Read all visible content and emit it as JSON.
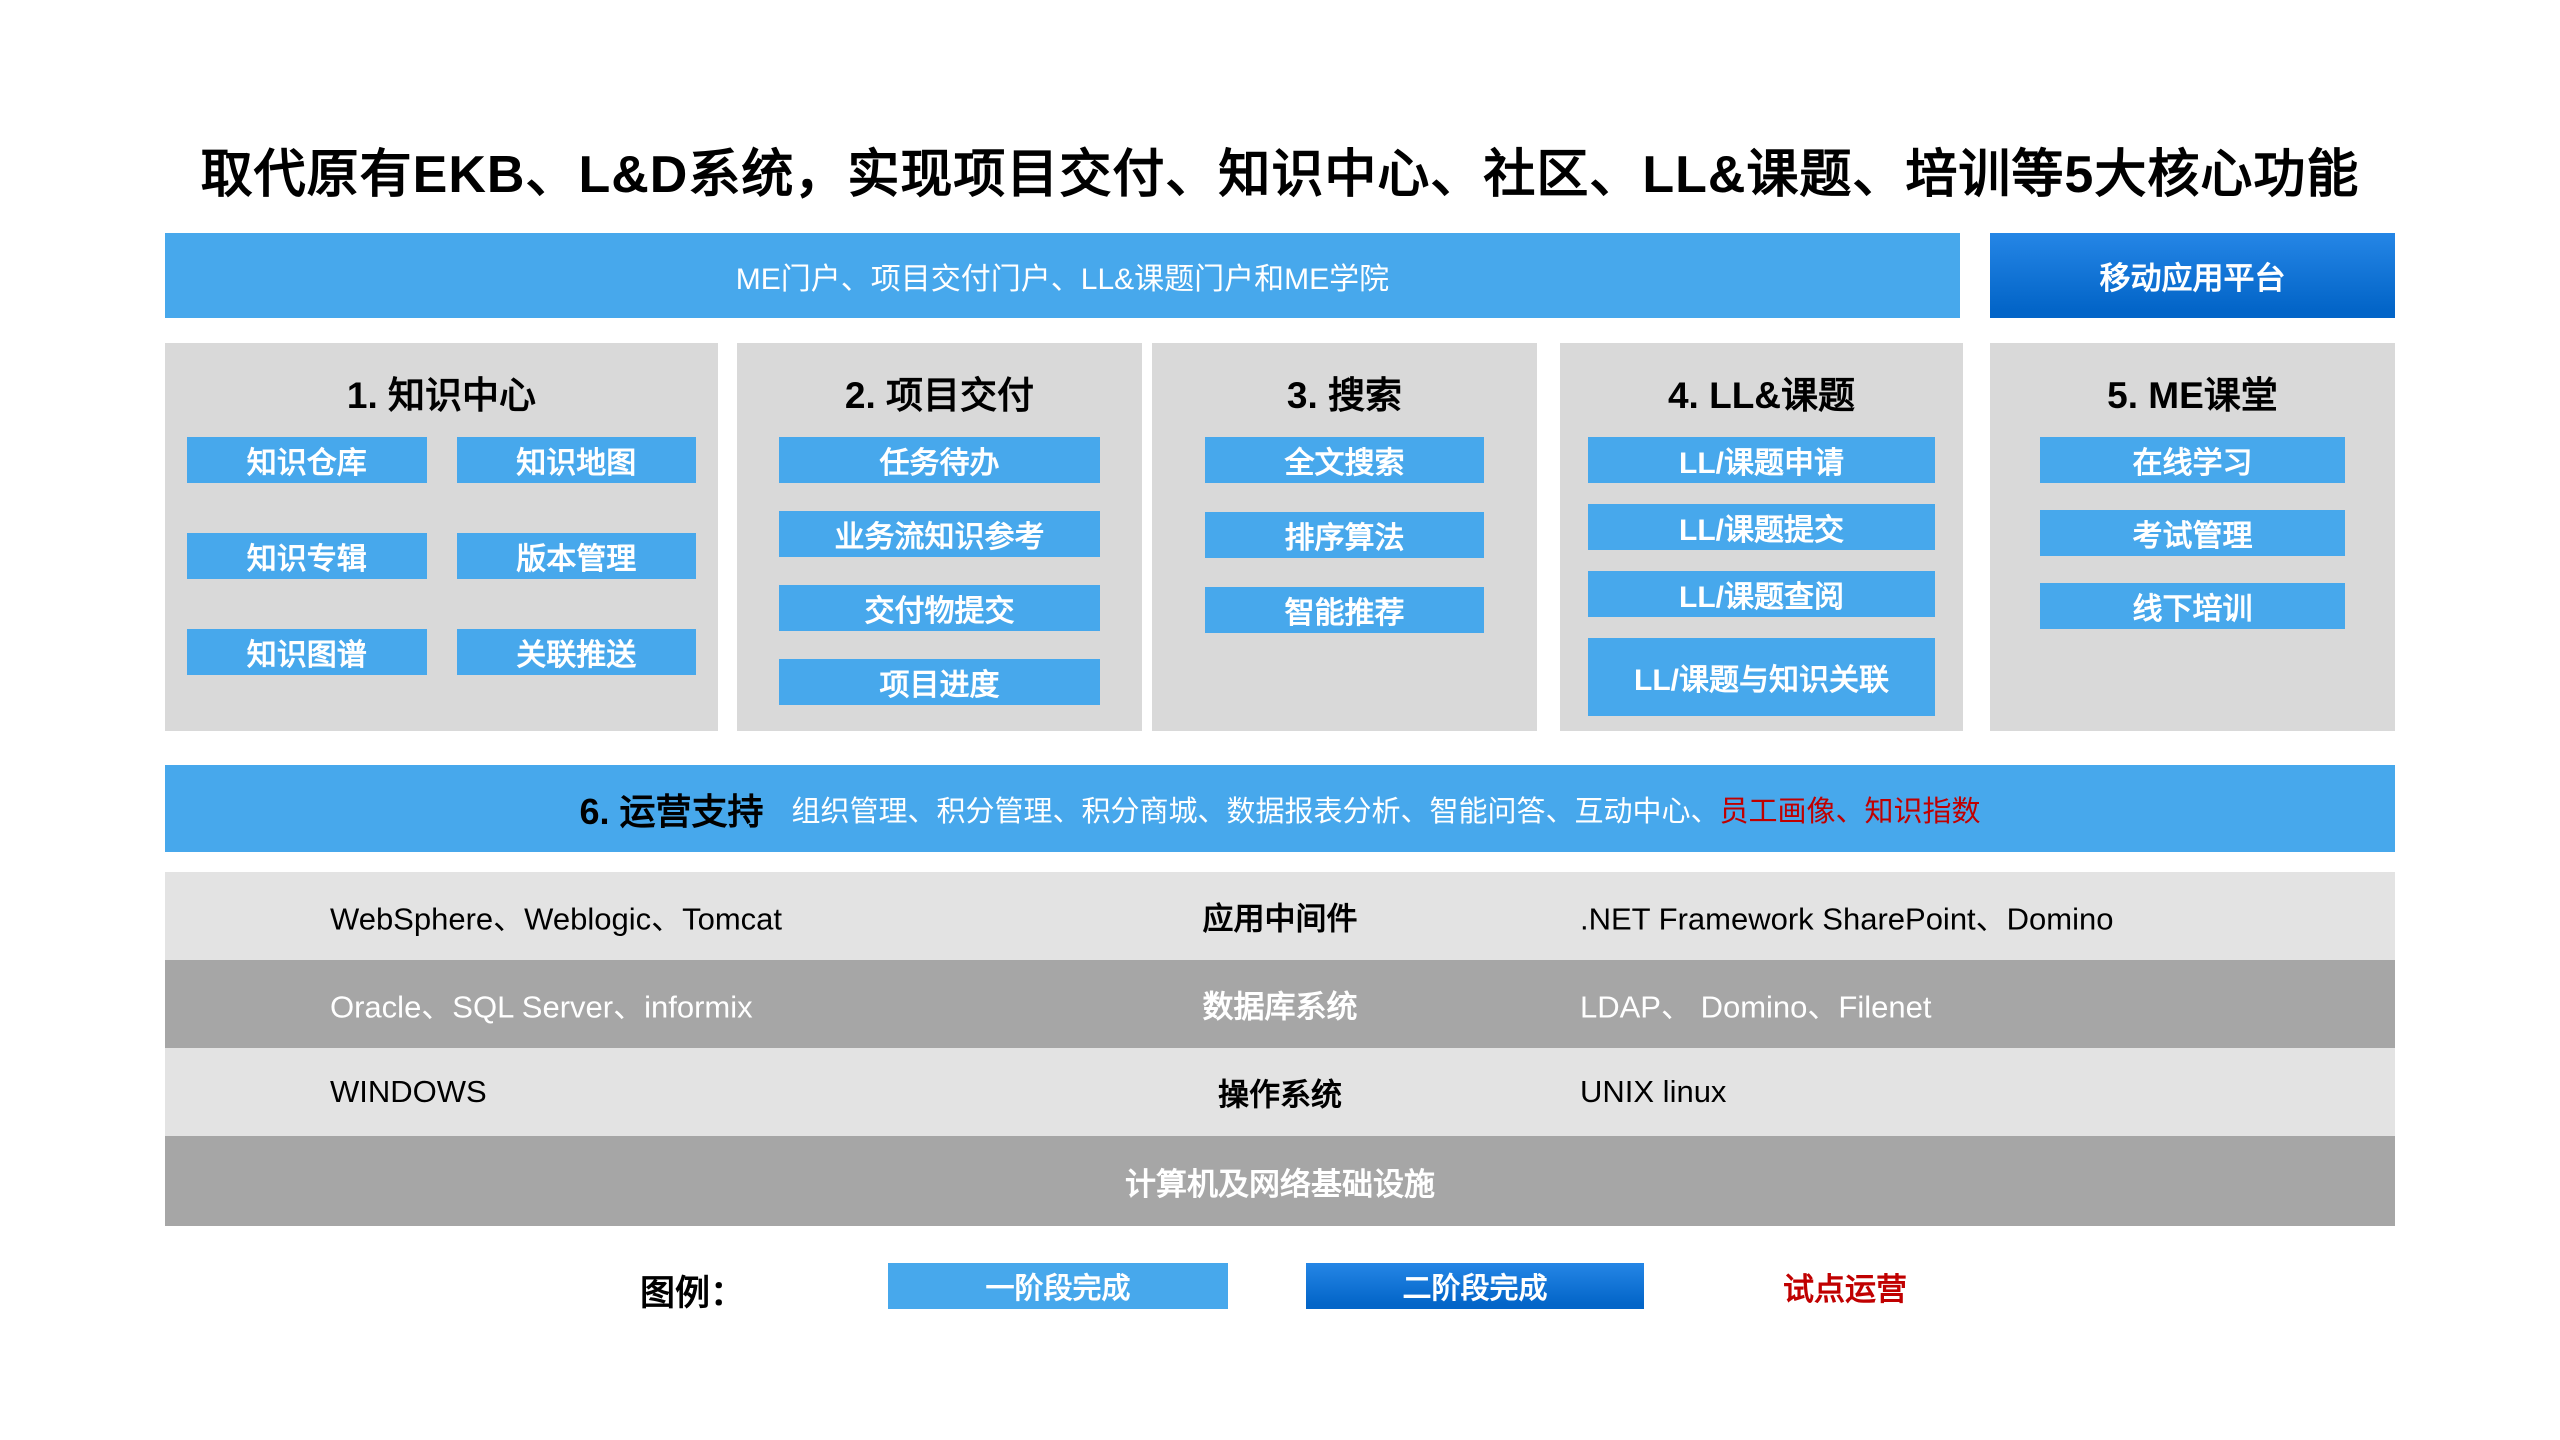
{
  "page": {
    "title": "取代原有EKB、L&D系统，实现项目交付、知识中心、社区、LL&课题、培训等5大核心功能"
  },
  "top": {
    "portal_banner": "ME门户、项目交付门户、LL&课题门户和ME学院",
    "mobile_platform": "移动应用平台"
  },
  "columns": [
    {
      "title": "1. 知识中心",
      "items": [
        "知识仓库",
        "知识地图",
        "知识专辑",
        "版本管理",
        "知识图谱",
        "关联推送"
      ]
    },
    {
      "title": "2. 项目交付",
      "items": [
        "任务待办",
        "业务流知识参考",
        "交付物提交",
        "项目进度"
      ]
    },
    {
      "title": "3. 搜索",
      "items": [
        "全文搜索",
        "排序算法",
        "智能推荐"
      ]
    },
    {
      "title": "4. LL&课题",
      "items": [
        "LL/课题申请",
        "LL/课题提交",
        "LL/课题查阅",
        "LL/课题与知识关联"
      ]
    },
    {
      "title": "5. ME课堂",
      "items": [
        "在线学习",
        "考试管理",
        "线下培训"
      ]
    }
  ],
  "operations": {
    "label": "6. 运营支持",
    "items_text": "组织管理、积分管理、积分商城、数据报表分析、智能问答、互动中心、",
    "pilot_text": "员工画像、知识指数"
  },
  "infrastructure": {
    "rows": [
      {
        "left": "WebSphere、Weblogic、Tomcat",
        "center": "应用中间件",
        "right": ".NET Framework SharePoint、Domino",
        "theme": "light"
      },
      {
        "left": "Oracle、SQL Server、informix",
        "center": "数据库系统",
        "right": "LDAP、 Domino、Filenet",
        "theme": "dark"
      },
      {
        "left": "WINDOWS",
        "center": "操作系统",
        "right": "UNIX linux",
        "theme": "light"
      }
    ],
    "footer": "计算机及网络基础设施"
  },
  "legend": {
    "label": "图例：",
    "items": [
      {
        "text": "一阶段完成",
        "style": "phase1"
      },
      {
        "text": "二阶段完成",
        "style": "phase2"
      },
      {
        "text": "试点运营",
        "style": "pilot"
      }
    ]
  },
  "colors": {
    "phase1_blue": "#47a8ec",
    "phase2_blue": "#0365c8",
    "pilot_red": "#c00000",
    "column_bg": "#d9d9d9",
    "row_light": "#e3e3e3",
    "row_dark": "#a6a6a6",
    "title_color": "#000000"
  }
}
